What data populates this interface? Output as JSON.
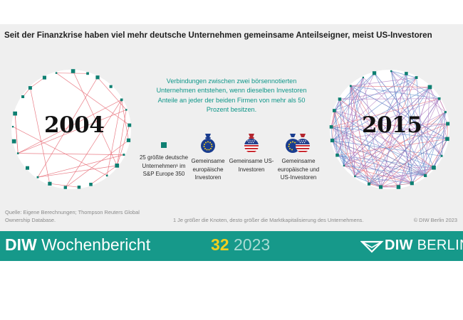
{
  "headline": "Seit der Finanzkrise haben viel mehr deutsche Unternehmen gemeinsame Anteilseigner, meist US-Investoren",
  "chart_data": {
    "type": "network",
    "panels": [
      {
        "year": "2004",
        "node_count": 25
      },
      {
        "year": "2015",
        "node_count": 25
      }
    ]
  },
  "explanation": "Verbindungen zwischen zwei börsennotierten Unternehmen entstehen, wenn dieselben Investoren Anteile an jeder der beiden Firmen von mehr als 50 Prozent besitzen.",
  "legend": {
    "node": "25 größte deutsche Unternehmen¹ im S&P Europe 350",
    "eu": "Gemeinsame europäische Investoren",
    "us": "Gemeinsame US-Investoren",
    "both": "Gemeinsame europäische und US-Investoren"
  },
  "colors": {
    "node": "#0e8072",
    "eu_link": "#e8707a",
    "us_link": "#5a86c8",
    "both_link": "#b07cc0",
    "teal": "#16998a",
    "year_accent": "#f2cf1e"
  },
  "icons": {
    "eu": "money-bag-eu-icon",
    "us": "money-bag-us-icon",
    "both": "money-bag-eu-us-icon"
  },
  "footer": {
    "source": "Quelle: Eigene Berechnungen; Thompson Reuters Global Ownership Database.",
    "footnote": "1    Je größer die Knoten, desto größer die Marktkapitalisierung des Unternehmens.",
    "copyright": "© DIW Berlin 2023"
  },
  "banner": {
    "brand_bold": "DIW",
    "brand_rest": " Wochenbericht",
    "issue_number": "32",
    "issue_year": " 2023",
    "logo_bold": "DIW",
    "logo_rest": " BERLIN"
  }
}
